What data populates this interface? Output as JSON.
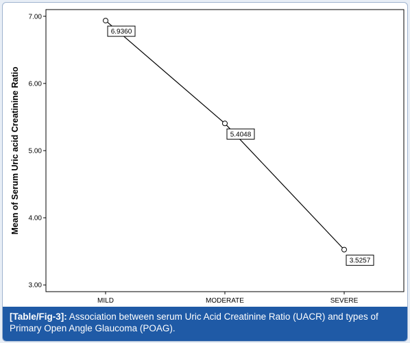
{
  "chart_data": {
    "type": "line",
    "categories": [
      "MILD",
      "MODERATE",
      "SEVERE"
    ],
    "values": [
      6.936,
      5.4048,
      3.5257
    ],
    "data_labels": [
      "6.9360",
      "5.4048",
      "3.5257"
    ],
    "ylabel": "Mean of Serum Uric acid Creatinine Ratio",
    "xlabel": "",
    "ylim": [
      2.9,
      7.1
    ],
    "y_ticks": [
      3.0,
      4.0,
      5.0,
      6.0,
      7.0
    ],
    "y_tick_labels": [
      "3.00",
      "4.00",
      "5.00",
      "6.00",
      "7.00"
    ],
    "grid": false,
    "marker": "open-circle"
  },
  "caption": {
    "tag": "[Table/Fig-3]:",
    "text": "Association between serum Uric Acid Creatinine Ratio (UACR) and types of Primary Open Angle Glaucoma (POAG)."
  },
  "colors": {
    "caption_bg": "#1f5aa6",
    "caption_text": "#ffffff",
    "line": "#000000"
  }
}
